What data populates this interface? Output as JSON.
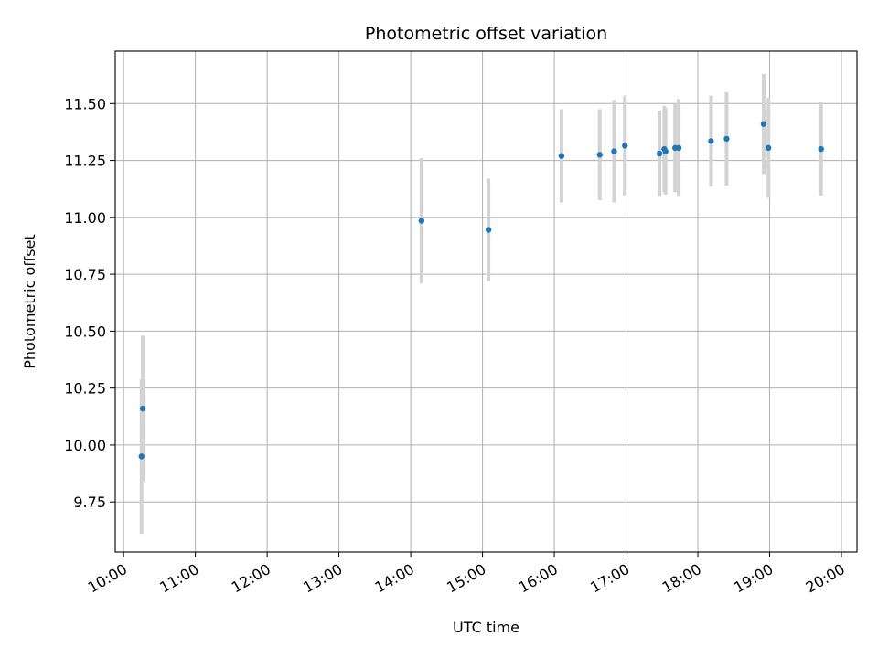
{
  "chart_data": {
    "type": "scatter",
    "title": "Photometric offset variation",
    "xlabel": "UTC time",
    "ylabel": "Photometric offset",
    "grid": true,
    "xlim": [
      "09:53",
      "20:13"
    ],
    "ylim": [
      9.53,
      11.73
    ],
    "x_ticks": [
      "10:00",
      "11:00",
      "12:00",
      "13:00",
      "14:00",
      "15:00",
      "16:00",
      "17:00",
      "18:00",
      "19:00",
      "20:00"
    ],
    "y_ticks": [
      "9.75",
      "10.00",
      "10.25",
      "10.50",
      "10.75",
      "11.00",
      "11.25",
      "11.50"
    ],
    "colors": {
      "point": "#1f77b4",
      "error_bar": "#d3d3d3",
      "grid": "#b0b0b0"
    },
    "series": [
      {
        "points": [
          {
            "x": "10:15",
            "y": 9.95,
            "err": 0.34
          },
          {
            "x": "10:16",
            "y": 10.16,
            "err": 0.32
          },
          {
            "x": "14:09",
            "y": 10.985,
            "err": 0.275
          },
          {
            "x": "15:05",
            "y": 10.945,
            "err": 0.225
          },
          {
            "x": "16:06",
            "y": 11.27,
            "err": 0.205
          },
          {
            "x": "16:38",
            "y": 11.275,
            "err": 0.2
          },
          {
            "x": "16:50",
            "y": 11.29,
            "err": 0.225
          },
          {
            "x": "16:59",
            "y": 11.315,
            "err": 0.22
          },
          {
            "x": "17:28",
            "y": 11.28,
            "err": 0.19
          },
          {
            "x": "17:32",
            "y": 11.3,
            "err": 0.19
          },
          {
            "x": "17:33",
            "y": 11.29,
            "err": 0.19
          },
          {
            "x": "17:41",
            "y": 11.305,
            "err": 0.195
          },
          {
            "x": "17:44",
            "y": 11.305,
            "err": 0.215
          },
          {
            "x": "18:11",
            "y": 11.335,
            "err": 0.2
          },
          {
            "x": "18:24",
            "y": 11.345,
            "err": 0.205
          },
          {
            "x": "18:55",
            "y": 11.41,
            "err": 0.22
          },
          {
            "x": "18:59",
            "y": 11.305,
            "err": 0.22
          },
          {
            "x": "19:43",
            "y": 11.3,
            "err": 0.205
          }
        ]
      }
    ]
  }
}
